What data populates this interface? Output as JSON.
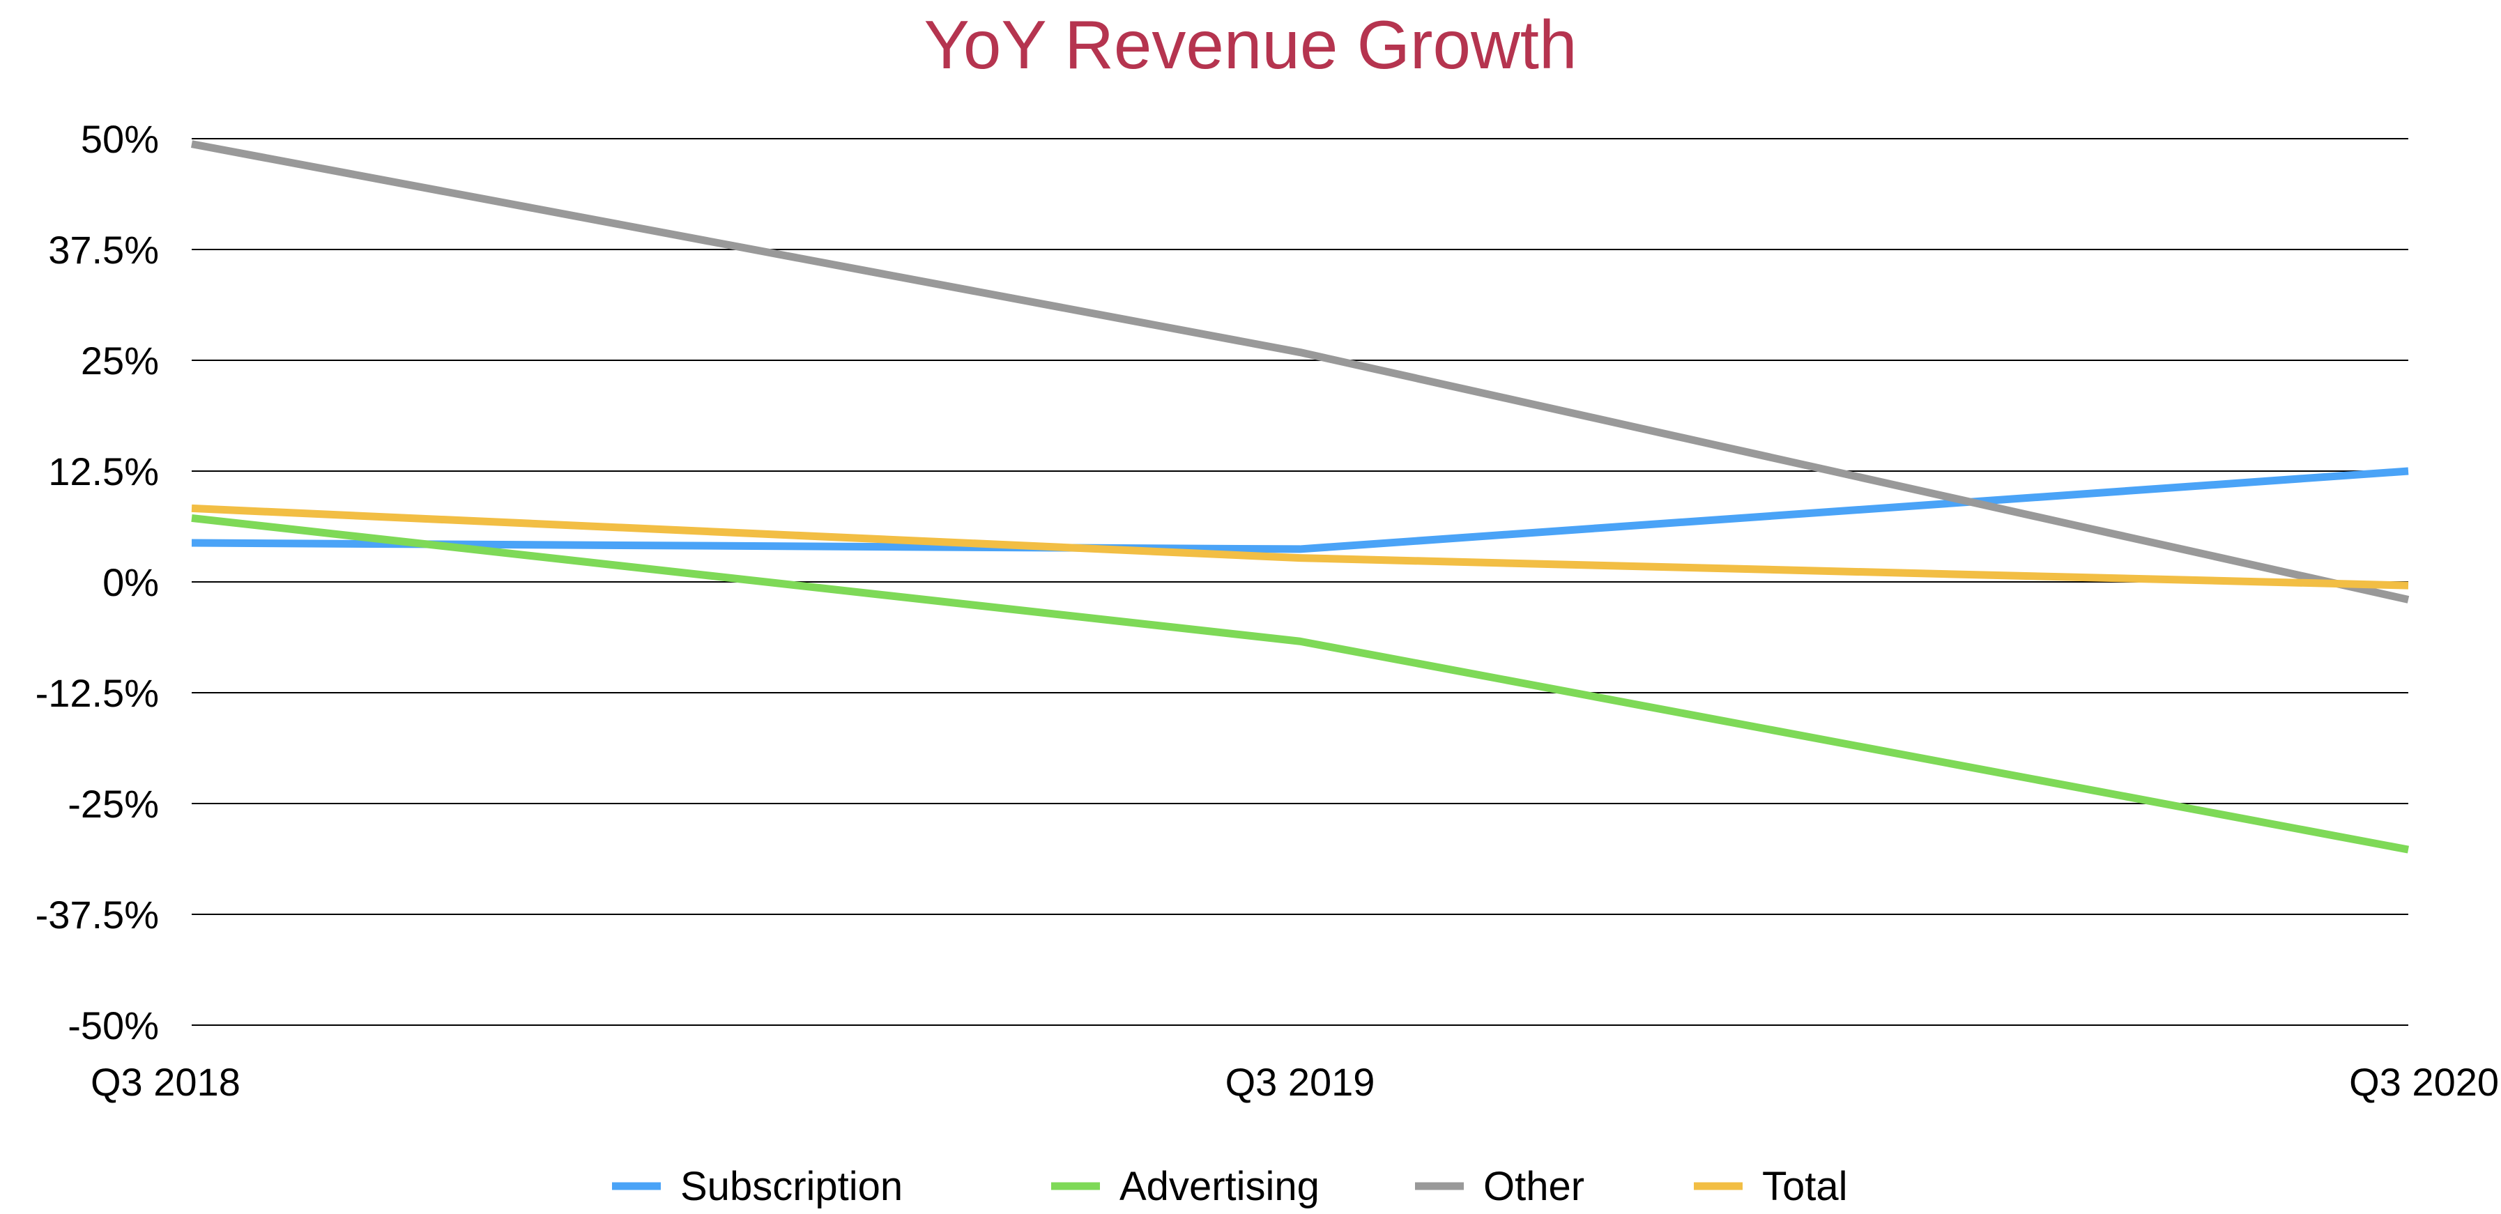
{
  "chart_data": {
    "type": "line",
    "title": "YoY Revenue Growth",
    "xlabel": "",
    "ylabel": "",
    "categories": [
      "Q3 2018",
      "Q3 2019",
      "Q3 2020"
    ],
    "ylim": [
      -50,
      50
    ],
    "yticks": [
      50,
      37.5,
      25,
      12.5,
      0,
      -12.5,
      -25,
      -37.5,
      -50
    ],
    "ytick_labels": [
      "50%",
      "37.5%",
      "25%",
      "12.5%",
      "0%",
      "-12.5%",
      "-25%",
      "-37.5%",
      "-50%"
    ],
    "grid": true,
    "legend_position": "bottom",
    "series": [
      {
        "name": "Subscription",
        "color": "#4aa3f7",
        "values": [
          4.4,
          3.7,
          12.5
        ]
      },
      {
        "name": "Advertising",
        "color": "#7ed957",
        "values": [
          7.2,
          -6.7,
          -30.2
        ]
      },
      {
        "name": "Other",
        "color": "#999999",
        "values": [
          49.4,
          25.9,
          -2.0
        ]
      },
      {
        "name": "Total",
        "color": "#f2be44",
        "values": [
          8.3,
          2.7,
          -0.4
        ]
      }
    ]
  }
}
